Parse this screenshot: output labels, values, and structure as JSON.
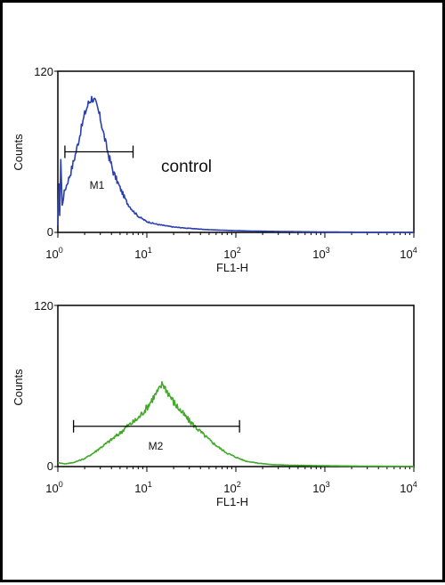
{
  "chart_data": [
    {
      "type": "line",
      "xscale": "log",
      "xlim": [
        1,
        10000
      ],
      "ylim": [
        0,
        120
      ],
      "xlabel": "FL1-H",
      "ylabel": "Counts",
      "x_ticks": [
        {
          "base": "10",
          "exp": "0"
        },
        {
          "base": "10",
          "exp": "1"
        },
        {
          "base": "10",
          "exp": "2"
        },
        {
          "base": "10",
          "exp": "3"
        },
        {
          "base": "10",
          "exp": "4"
        }
      ],
      "y_ticks": [
        "0",
        "120"
      ],
      "annotation": "control",
      "color": "#2a3fb0",
      "marker": {
        "label": "M1",
        "x_start": 1.2,
        "x_end": 7,
        "y": 60
      },
      "peak_x": 2.5,
      "series": [
        {
          "values": [
            [
              1.0,
              5
            ],
            [
              1.03,
              38
            ],
            [
              1.05,
              12
            ],
            [
              1.08,
              55
            ],
            [
              1.12,
              20
            ],
            [
              1.18,
              30
            ],
            [
              1.25,
              35
            ],
            [
              1.4,
              45
            ],
            [
              1.6,
              60
            ],
            [
              1.8,
              75
            ],
            [
              2.0,
              88
            ],
            [
              2.2,
              96
            ],
            [
              2.4,
              100
            ],
            [
              2.6,
              98
            ],
            [
              2.8,
              92
            ],
            [
              3.0,
              85
            ],
            [
              3.3,
              72
            ],
            [
              3.7,
              58
            ],
            [
              4.2,
              45
            ],
            [
              5.0,
              33
            ],
            [
              6.0,
              22
            ],
            [
              7.0,
              16
            ],
            [
              8.0,
              12
            ],
            [
              10.0,
              8
            ],
            [
              13.0,
              6
            ],
            [
              16.0,
              5
            ],
            [
              20.0,
              4
            ],
            [
              30.0,
              3
            ],
            [
              50.0,
              2
            ],
            [
              80.0,
              1.5
            ],
            [
              150.0,
              1
            ],
            [
              400.0,
              0.6
            ],
            [
              1000.0,
              0.3
            ],
            [
              3000.0,
              0.1
            ],
            [
              10000.0,
              0
            ]
          ]
        }
      ]
    },
    {
      "type": "line",
      "xscale": "log",
      "xlim": [
        1,
        10000
      ],
      "ylim": [
        0,
        120
      ],
      "xlabel": "FL1-H",
      "ylabel": "Counts",
      "x_ticks": [
        {
          "base": "10",
          "exp": "0"
        },
        {
          "base": "10",
          "exp": "1"
        },
        {
          "base": "10",
          "exp": "2"
        },
        {
          "base": "10",
          "exp": "3"
        },
        {
          "base": "10",
          "exp": "4"
        }
      ],
      "y_ticks": [
        "0",
        "120"
      ],
      "color": "#3faa25",
      "marker": {
        "label": "M2",
        "x_start": 1.5,
        "x_end": 110,
        "y": 30
      },
      "peak_x": 15,
      "series": [
        {
          "values": [
            [
              1.0,
              3
            ],
            [
              1.2,
              2
            ],
            [
              1.5,
              3
            ],
            [
              2.0,
              6
            ],
            [
              2.5,
              10
            ],
            [
              3.0,
              14
            ],
            [
              4.0,
              20
            ],
            [
              5.0,
              25
            ],
            [
              6.0,
              30
            ],
            [
              7.0,
              33
            ],
            [
              8.0,
              36
            ],
            [
              10.0,
              44
            ],
            [
              12.0,
              52
            ],
            [
              14.0,
              58
            ],
            [
              15.0,
              62
            ],
            [
              17.0,
              56
            ],
            [
              20.0,
              48
            ],
            [
              25.0,
              40
            ],
            [
              30.0,
              34
            ],
            [
              40.0,
              26
            ],
            [
              50.0,
              20
            ],
            [
              65.0,
              14
            ],
            [
              80.0,
              10
            ],
            [
              100.0,
              7
            ],
            [
              130.0,
              4
            ],
            [
              180.0,
              2.5
            ],
            [
              250.0,
              1.5
            ],
            [
              400.0,
              1
            ],
            [
              1000.0,
              0.6
            ],
            [
              3000.0,
              0.3
            ],
            [
              10000.0,
              0.1
            ]
          ]
        }
      ]
    }
  ]
}
